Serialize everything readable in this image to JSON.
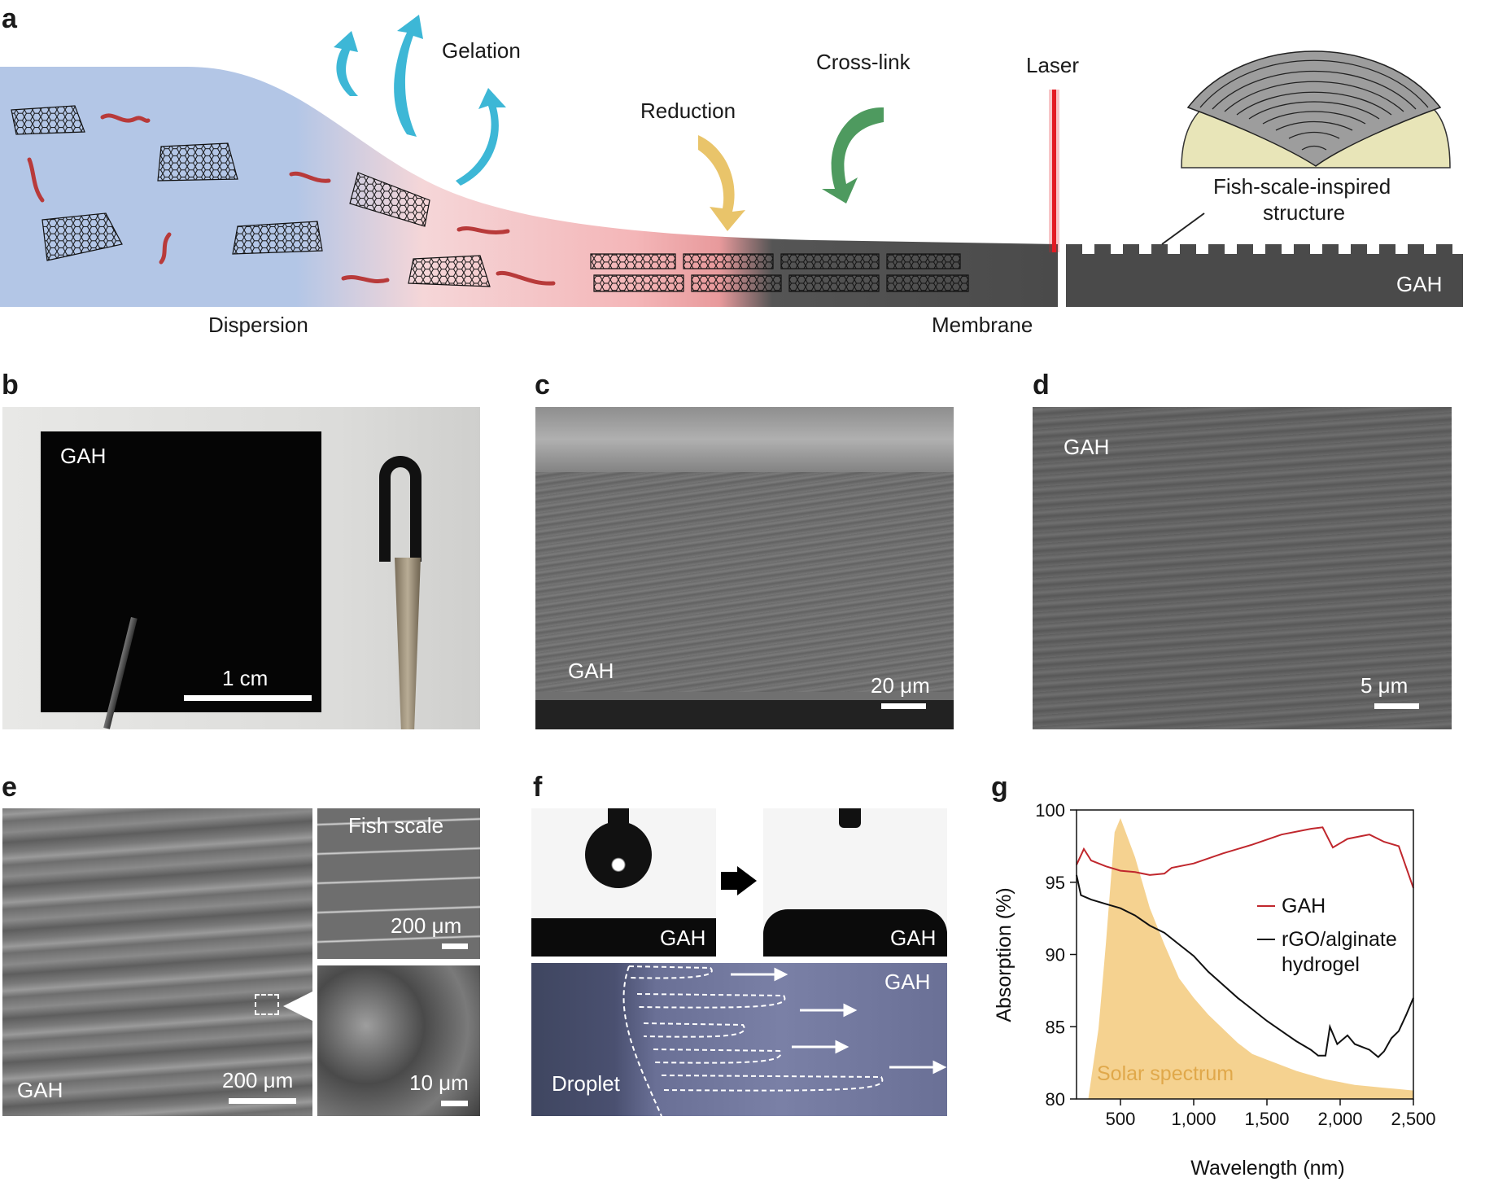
{
  "panels": {
    "a": {
      "letter": "a",
      "gelation": "Gelation",
      "reduction": "Reduction",
      "crosslink": "Cross-link",
      "laser": "Laser",
      "fish_scale_label": "Fish-scale-inspired\nstructure",
      "fish_scale_line1": "Fish-scale-inspired",
      "fish_scale_line2": "structure",
      "gah": "GAH",
      "dispersion": "Dispersion",
      "membrane": "Membrane"
    },
    "b": {
      "letter": "b",
      "gah": "GAH",
      "scale": "1 cm"
    },
    "c": {
      "letter": "c",
      "gah": "GAH",
      "scale": "20 μm"
    },
    "d": {
      "letter": "d",
      "gah": "GAH",
      "scale": "5 μm"
    },
    "e": {
      "letter": "e",
      "gah": "GAH",
      "scale_main": "200 μm",
      "fish_scale": "Fish scale",
      "scale_top": "200 μm",
      "scale_bottom": "10 μm"
    },
    "f": {
      "letter": "f",
      "gah_left": "GAH",
      "gah_right": "GAH",
      "gah_bottom": "GAH",
      "droplet": "Droplet"
    },
    "g": {
      "letter": "g"
    }
  },
  "colors": {
    "dispersion_blue": "#b3c6e6",
    "membrane_pink": "#f4b6b8",
    "gah_dark": "#4a4a4a",
    "gelation_arrow": "#3db7d6",
    "reduction_arrow": "#e9c46a",
    "crosslink_arrow": "#4e9a5f",
    "laser_red": "#e31b23",
    "polymer_red": "#b83a3a",
    "gah_line": "#c0272d",
    "rgo_line": "#111111",
    "solar_fill": "#f2c36b"
  },
  "chart_data": {
    "type": "line",
    "title": "",
    "xlabel": "Wavelength (nm)",
    "ylabel": "Absorption (%)",
    "xlim": [
      200,
      2500
    ],
    "ylim": [
      80,
      100
    ],
    "xticks": [
      500,
      1000,
      1500,
      2000,
      2500
    ],
    "xtick_labels": [
      "500",
      "1,000",
      "1,500",
      "2,000",
      "2,500"
    ],
    "yticks": [
      80,
      85,
      90,
      95,
      100
    ],
    "ytick_labels": [
      "80",
      "85",
      "90",
      "95",
      "100"
    ],
    "legend_position": "right",
    "annotation": "Solar spectrum",
    "series": [
      {
        "name": "GAH",
        "x": [
          200,
          250,
          300,
          400,
          500,
          600,
          700,
          800,
          850,
          1000,
          1200,
          1400,
          1600,
          1800,
          1880,
          1950,
          2050,
          2150,
          2200,
          2300,
          2400,
          2500
        ],
        "y": [
          96.2,
          97.3,
          96.5,
          96.1,
          95.8,
          95.7,
          95.5,
          95.6,
          96.0,
          96.3,
          97.0,
          97.6,
          98.3,
          98.7,
          98.8,
          97.4,
          98.0,
          98.2,
          98.3,
          97.8,
          97.5,
          94.6
        ]
      },
      {
        "name": "rGO/alginate\nhydrogel",
        "x": [
          200,
          230,
          300,
          400,
          500,
          600,
          700,
          800,
          900,
          1000,
          1100,
          1200,
          1300,
          1400,
          1500,
          1600,
          1700,
          1800,
          1850,
          1900,
          1930,
          1980,
          2050,
          2100,
          2200,
          2260,
          2300,
          2350,
          2400,
          2450,
          2500
        ],
        "y": [
          95.5,
          94.1,
          93.8,
          93.5,
          93.2,
          92.7,
          92.0,
          91.5,
          90.7,
          89.9,
          88.8,
          87.9,
          87.0,
          86.2,
          85.4,
          84.7,
          84.0,
          83.4,
          83.0,
          83.0,
          85.0,
          83.8,
          84.4,
          83.8,
          83.4,
          82.9,
          83.3,
          84.2,
          84.7,
          85.8,
          87.0
        ]
      }
    ],
    "solar_spectrum_relative": {
      "x": [
        280,
        350,
        400,
        430,
        460,
        500,
        550,
        600,
        650,
        700,
        800,
        900,
        1000,
        1100,
        1200,
        1300,
        1400,
        1500,
        1600,
        1700,
        1800,
        1900,
        2000,
        2100,
        2200,
        2300,
        2400,
        2500
      ],
      "y": [
        0.0,
        0.25,
        0.55,
        0.75,
        0.95,
        1.0,
        0.93,
        0.86,
        0.77,
        0.68,
        0.55,
        0.43,
        0.36,
        0.3,
        0.25,
        0.2,
        0.16,
        0.14,
        0.12,
        0.1,
        0.085,
        0.07,
        0.06,
        0.05,
        0.045,
        0.04,
        0.035,
        0.03
      ]
    }
  }
}
